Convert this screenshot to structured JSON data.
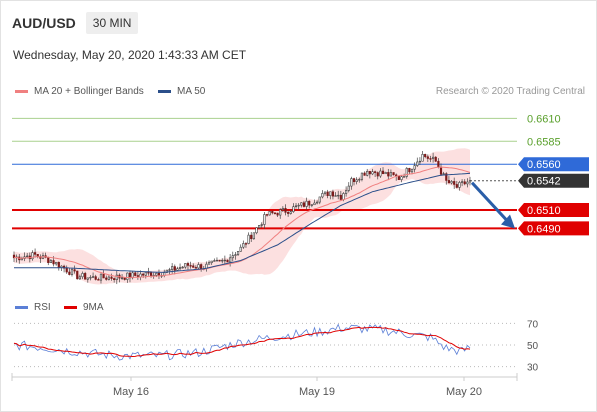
{
  "header": {
    "symbol": "AUD/USD",
    "timeframe": "30 MIN",
    "datetime": "Wednesday, May 20, 2020 1:43:33 AM CET"
  },
  "legend": {
    "ma20_label": "MA 20 + Bollinger Bands",
    "ma50_label": "MA 50",
    "credit": "Research © 2020 Trading Central",
    "rsi_label": "RSI",
    "ma9_label": "9MA"
  },
  "colors": {
    "ma20": "#f08080",
    "ma50": "#2b4f8a",
    "band": "#fbdada",
    "resistance": "#a9d18e",
    "resistance_text": "#5aa02c",
    "support": "#e00000",
    "pivot": "#2f6ad8",
    "last": "#333333",
    "rsi": "#5b7fd6",
    "ma9": "#e00000",
    "arrow": "#2a5ea8"
  },
  "chart_data": [
    {
      "type": "line",
      "name": "price",
      "x_labels": [
        "May 16",
        "May 19",
        "May 20"
      ],
      "y_range": [
        0.6425,
        0.663
      ],
      "levels": [
        {
          "value": 0.661,
          "label": "0.6610",
          "kind": "resistance"
        },
        {
          "value": 0.6585,
          "label": "0.6585",
          "kind": "resistance"
        },
        {
          "value": 0.656,
          "label": "0.6560",
          "kind": "pivot"
        },
        {
          "value": 0.6542,
          "label": "0.6542",
          "kind": "last"
        },
        {
          "value": 0.651,
          "label": "0.6510",
          "kind": "support"
        },
        {
          "value": 0.649,
          "label": "0.6490",
          "kind": "support"
        }
      ],
      "close_keypoints": [
        [
          0,
          0.6458
        ],
        [
          8,
          0.6461
        ],
        [
          14,
          0.6455
        ],
        [
          20,
          0.6445
        ],
        [
          24,
          0.6438
        ],
        [
          30,
          0.6436
        ],
        [
          40,
          0.6437
        ],
        [
          50,
          0.644
        ],
        [
          58,
          0.6443
        ],
        [
          66,
          0.645
        ],
        [
          72,
          0.6448
        ],
        [
          80,
          0.6455
        ],
        [
          86,
          0.6468
        ],
        [
          92,
          0.649
        ],
        [
          96,
          0.6505
        ],
        [
          104,
          0.651
        ],
        [
          112,
          0.6518
        ],
        [
          120,
          0.653
        ],
        [
          124,
          0.6525
        ],
        [
          128,
          0.6542
        ],
        [
          134,
          0.6553
        ],
        [
          140,
          0.655
        ],
        [
          146,
          0.6545
        ],
        [
          150,
          0.6555
        ],
        [
          155,
          0.657
        ],
        [
          160,
          0.6563
        ],
        [
          164,
          0.6541
        ],
        [
          168,
          0.6535
        ],
        [
          173,
          0.6542
        ]
      ],
      "ma50_keypoints": [
        [
          0,
          0.6447
        ],
        [
          20,
          0.6447
        ],
        [
          40,
          0.6444
        ],
        [
          56,
          0.6442
        ],
        [
          72,
          0.6446
        ],
        [
          86,
          0.6455
        ],
        [
          100,
          0.6472
        ],
        [
          112,
          0.6494
        ],
        [
          124,
          0.6515
        ],
        [
          136,
          0.653
        ],
        [
          150,
          0.654
        ],
        [
          162,
          0.6548
        ],
        [
          173,
          0.655
        ]
      ]
    },
    {
      "type": "line",
      "name": "rsi",
      "y_ticks": [
        70,
        50,
        30
      ],
      "y_range": [
        25,
        75
      ]
    }
  ]
}
